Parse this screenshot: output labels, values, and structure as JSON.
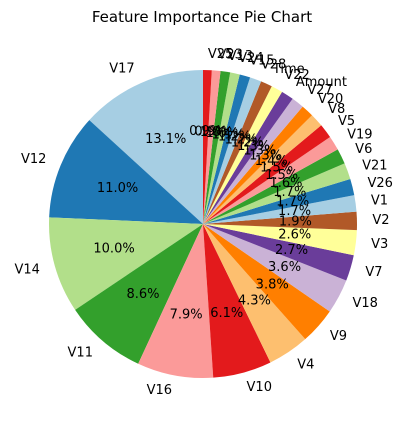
{
  "chart_data": {
    "type": "pie",
    "title": "Feature Importance Pie Chart",
    "start_angle_deg": 90,
    "direction": "counterclockwise",
    "slices": [
      {
        "label": "V17",
        "value": 13.1,
        "pct": "13.1%",
        "color": "#a6cee3"
      },
      {
        "label": "V12",
        "value": 11.0,
        "pct": "11.0%",
        "color": "#1f78b4"
      },
      {
        "label": "V14",
        "value": 10.0,
        "pct": "10.0%",
        "color": "#b2df8a"
      },
      {
        "label": "V11",
        "value": 8.6,
        "pct": "8.6%",
        "color": "#33a02c"
      },
      {
        "label": "V16",
        "value": 7.9,
        "pct": "7.9%",
        "color": "#fb9a99"
      },
      {
        "label": "V10",
        "value": 6.1,
        "pct": "6.1%",
        "color": "#e31a1c"
      },
      {
        "label": "V4",
        "value": 4.3,
        "pct": "4.3%",
        "color": "#fdbf6f"
      },
      {
        "label": "V9",
        "value": 3.8,
        "pct": "3.8%",
        "color": "#ff7f00"
      },
      {
        "label": "V18",
        "value": 3.6,
        "pct": "3.6%",
        "color": "#cab2d6"
      },
      {
        "label": "V7",
        "value": 2.7,
        "pct": "2.7%",
        "color": "#6a3d9a"
      },
      {
        "label": "V3",
        "value": 2.6,
        "pct": "2.6%",
        "color": "#ffff99"
      },
      {
        "label": "V2",
        "value": 1.9,
        "pct": "1.9%",
        "color": "#b15928"
      },
      {
        "label": "V1",
        "value": 1.7,
        "pct": "1.7%",
        "color": "#a6cee3"
      },
      {
        "label": "V26",
        "value": 1.7,
        "pct": "1.7%",
        "color": "#1f78b4"
      },
      {
        "label": "V21",
        "value": 1.7,
        "pct": "1.7%",
        "color": "#b2df8a"
      },
      {
        "label": "V6",
        "value": 1.6,
        "pct": "1.6%",
        "color": "#33a02c"
      },
      {
        "label": "V19",
        "value": 1.5,
        "pct": "1.5%",
        "color": "#fb9a99"
      },
      {
        "label": "V5",
        "value": 1.5,
        "pct": "1.5%",
        "color": "#e31a1c"
      },
      {
        "label": "V8",
        "value": 1.4,
        "pct": "1.4%",
        "color": "#fdbf6f"
      },
      {
        "label": "V20",
        "value": 1.3,
        "pct": "1.3%",
        "color": "#ff7f00"
      },
      {
        "label": "V27",
        "value": 1.3,
        "pct": "1.3%",
        "color": "#cab2d6"
      },
      {
        "label": "Amount",
        "value": 1.3,
        "pct": "1.3%",
        "color": "#6a3d9a"
      },
      {
        "label": "V22",
        "value": 1.2,
        "pct": "1.2%",
        "color": "#ffff99"
      },
      {
        "label": "Time",
        "value": 1.2,
        "pct": "1.2%",
        "color": "#b15928"
      },
      {
        "label": "V28",
        "value": 1.2,
        "pct": "1.2%",
        "color": "#a6cee3"
      },
      {
        "label": "V15",
        "value": 1.1,
        "pct": "1.1%",
        "color": "#1f78b4"
      },
      {
        "label": "V24",
        "value": 1.0,
        "pct": "1.0%",
        "color": "#b2df8a"
      },
      {
        "label": "V13",
        "value": 1.0,
        "pct": "1.0%",
        "color": "#33a02c"
      },
      {
        "label": "V23",
        "value": 0.9,
        "pct": "0.9%",
        "color": "#fb9a99"
      },
      {
        "label": "V25",
        "value": 0.9,
        "pct": "0.9%",
        "color": "#e31a1c"
      }
    ]
  }
}
